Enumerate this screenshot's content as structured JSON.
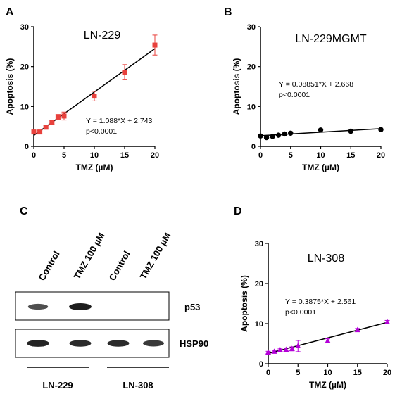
{
  "panels": {
    "A": "A",
    "B": "B",
    "C": "C",
    "D": "D"
  },
  "chart_data": [
    {
      "panel": "A",
      "type": "scatter",
      "title": "LN-229",
      "xlabel": "TMZ (µM)",
      "ylabel": "Apoptosis (%)",
      "xlim": [
        0,
        20
      ],
      "ylim": [
        0,
        30
      ],
      "xticks": [
        "0",
        "5",
        "10",
        "15",
        "20"
      ],
      "yticks": [
        "0",
        "10",
        "20",
        "30"
      ],
      "x": [
        0,
        1,
        2,
        3,
        4,
        5,
        10,
        15,
        20
      ],
      "y": [
        3.6,
        3.6,
        4.8,
        6.0,
        7.4,
        7.6,
        12.6,
        18.6,
        25.4
      ],
      "err": [
        0.3,
        0.4,
        0.4,
        0.5,
        0.6,
        1.0,
        1.2,
        1.9,
        2.5
      ],
      "fit": {
        "slope": 1.088,
        "intercept": 2.743
      },
      "equation": "Y = 1.088*X + 2.743",
      "pvalue": "p<0.0001",
      "color": "#e8413c",
      "marker": "square"
    },
    {
      "panel": "B",
      "type": "scatter",
      "title": "LN-229MGMT",
      "xlabel": "TMZ (µM)",
      "ylabel": "Apoptosis (%)",
      "xlim": [
        0,
        20
      ],
      "ylim": [
        0,
        30
      ],
      "xticks": [
        "0",
        "5",
        "10",
        "15",
        "20"
      ],
      "yticks": [
        "0",
        "10",
        "20",
        "30"
      ],
      "x": [
        0,
        1,
        2,
        3,
        4,
        5,
        10,
        15,
        20
      ],
      "y": [
        2.6,
        2.2,
        2.5,
        2.8,
        3.1,
        3.3,
        4.1,
        3.8,
        4.2
      ],
      "err": [],
      "fit": {
        "slope": 0.08851,
        "intercept": 2.668
      },
      "equation": "Y = 0.08851*X + 2.668",
      "pvalue": "p<0.0001",
      "color": "#000000",
      "marker": "circle"
    },
    {
      "panel": "D",
      "type": "scatter",
      "title": "LN-308",
      "xlabel": "TMZ (µM)",
      "ylabel": "Apoptosis (%)",
      "xlim": [
        0,
        20
      ],
      "ylim": [
        0,
        30
      ],
      "xticks": [
        "0",
        "5",
        "10",
        "15",
        "20"
      ],
      "yticks": [
        "0",
        "10",
        "20",
        "30"
      ],
      "x": [
        0,
        1,
        2,
        3,
        4,
        5,
        10,
        15,
        20
      ],
      "y": [
        2.8,
        3.0,
        3.4,
        3.5,
        3.7,
        4.4,
        5.7,
        8.4,
        10.4
      ],
      "err": [
        0.3,
        0.3,
        0.3,
        0.4,
        0.5,
        1.4,
        0.5,
        0.4,
        0.4
      ],
      "fit": {
        "slope": 0.3875,
        "intercept": 2.561
      },
      "equation": "Y = 0.3875*X + 2.561",
      "pvalue": "p<0.0001",
      "color": "#b400d8",
      "marker": "triangle"
    }
  ],
  "blot": {
    "lanes": [
      "Control",
      "TMZ 100 µM",
      "Control",
      "TMZ 100 µM"
    ],
    "rows": [
      {
        "label": "p53",
        "band_intensity": [
          0.65,
          1.0,
          0.0,
          0.0
        ]
      },
      {
        "label": "HSP90",
        "band_intensity": [
          0.95,
          0.9,
          0.9,
          0.8
        ]
      }
    ],
    "groups": [
      "LN-229",
      "LN-308"
    ]
  }
}
